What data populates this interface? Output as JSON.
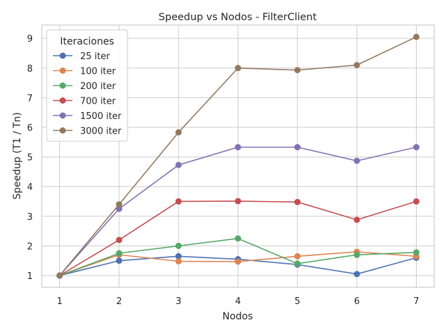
{
  "chart_data": {
    "type": "line",
    "title": "Speedup vs Nodos - FilterClient",
    "xlabel": "Nodos",
    "ylabel": "Speedup (T1 / Tn)",
    "x": [
      1,
      2,
      3,
      4,
      5,
      6,
      7
    ],
    "xlim": [
      0.7,
      7.3
    ],
    "ylim": [
      0.6,
      9.45
    ],
    "xticks": [
      "1",
      "2",
      "3",
      "4",
      "5",
      "6",
      "7"
    ],
    "yticks": [
      "1",
      "2",
      "3",
      "4",
      "5",
      "6",
      "7",
      "8",
      "9"
    ],
    "grid": true,
    "legend": {
      "title": "Iteraciones",
      "placement": "top-left"
    },
    "series": [
      {
        "name": "25 iter",
        "color": "#4c72b0",
        "values": [
          1.0,
          1.5,
          1.65,
          1.55,
          1.37,
          1.05,
          1.6
        ]
      },
      {
        "name": "100 iter",
        "color": "#dd8452",
        "values": [
          1.0,
          1.7,
          1.48,
          1.47,
          1.65,
          1.8,
          1.65
        ]
      },
      {
        "name": "200 iter",
        "color": "#55a868",
        "values": [
          1.0,
          1.75,
          2.0,
          2.25,
          1.4,
          1.7,
          1.78
        ]
      },
      {
        "name": "700 iter",
        "color": "#c44e52",
        "values": [
          1.0,
          2.2,
          3.5,
          3.51,
          3.48,
          2.88,
          3.5
        ]
      },
      {
        "name": "1500 iter",
        "color": "#8172b3",
        "values": [
          1.0,
          3.25,
          4.73,
          5.33,
          5.33,
          4.87,
          5.33
        ]
      },
      {
        "name": "3000 iter",
        "color": "#937860",
        "values": [
          1.0,
          3.4,
          5.83,
          8.0,
          7.93,
          8.1,
          9.05
        ]
      }
    ]
  }
}
